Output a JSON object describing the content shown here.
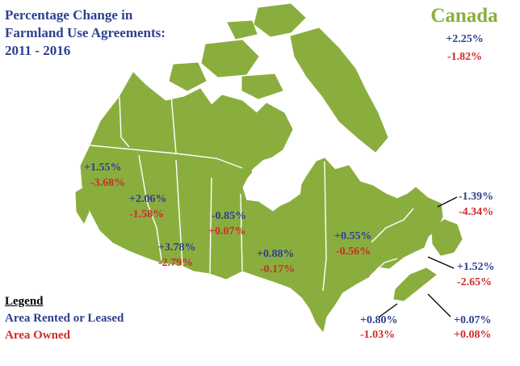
{
  "title": {
    "line1": "Percentage Change in",
    "line2": "Farmland Use Agreements:",
    "line3": "2011 - 2016"
  },
  "national": {
    "name": "Canada",
    "rented": "+2.25%",
    "owned": "-1.82%"
  },
  "regions": [
    {
      "rented": "+1.55%",
      "owned": "-3.68%"
    },
    {
      "rented": "+2.06%",
      "owned": "-1.58%"
    },
    {
      "rented": "+3.78%",
      "owned": "-2.79%"
    },
    {
      "rented": "-0.85%",
      "owned": "+0.07%"
    },
    {
      "rented": "+0.88%",
      "owned": "-0.17%"
    },
    {
      "rented": "+0.55%",
      "owned": "-0.56%"
    },
    {
      "rented": "-1.39%",
      "owned": "-4.34%"
    },
    {
      "rented": "+1.52%",
      "owned": "-2.65%"
    },
    {
      "rented": "+0.80%",
      "owned": "-1.03%"
    },
    {
      "rented": "+0.07%",
      "owned": "+0.08%"
    }
  ],
  "legend": {
    "title": "Legend",
    "rented_label": "Area Rented or Leased",
    "owned_label": "Area Owned"
  },
  "colors": {
    "land": "#8aae3e",
    "border": "#ffffff",
    "rented": "#2e3f8f",
    "owned": "#d02a2a"
  }
}
